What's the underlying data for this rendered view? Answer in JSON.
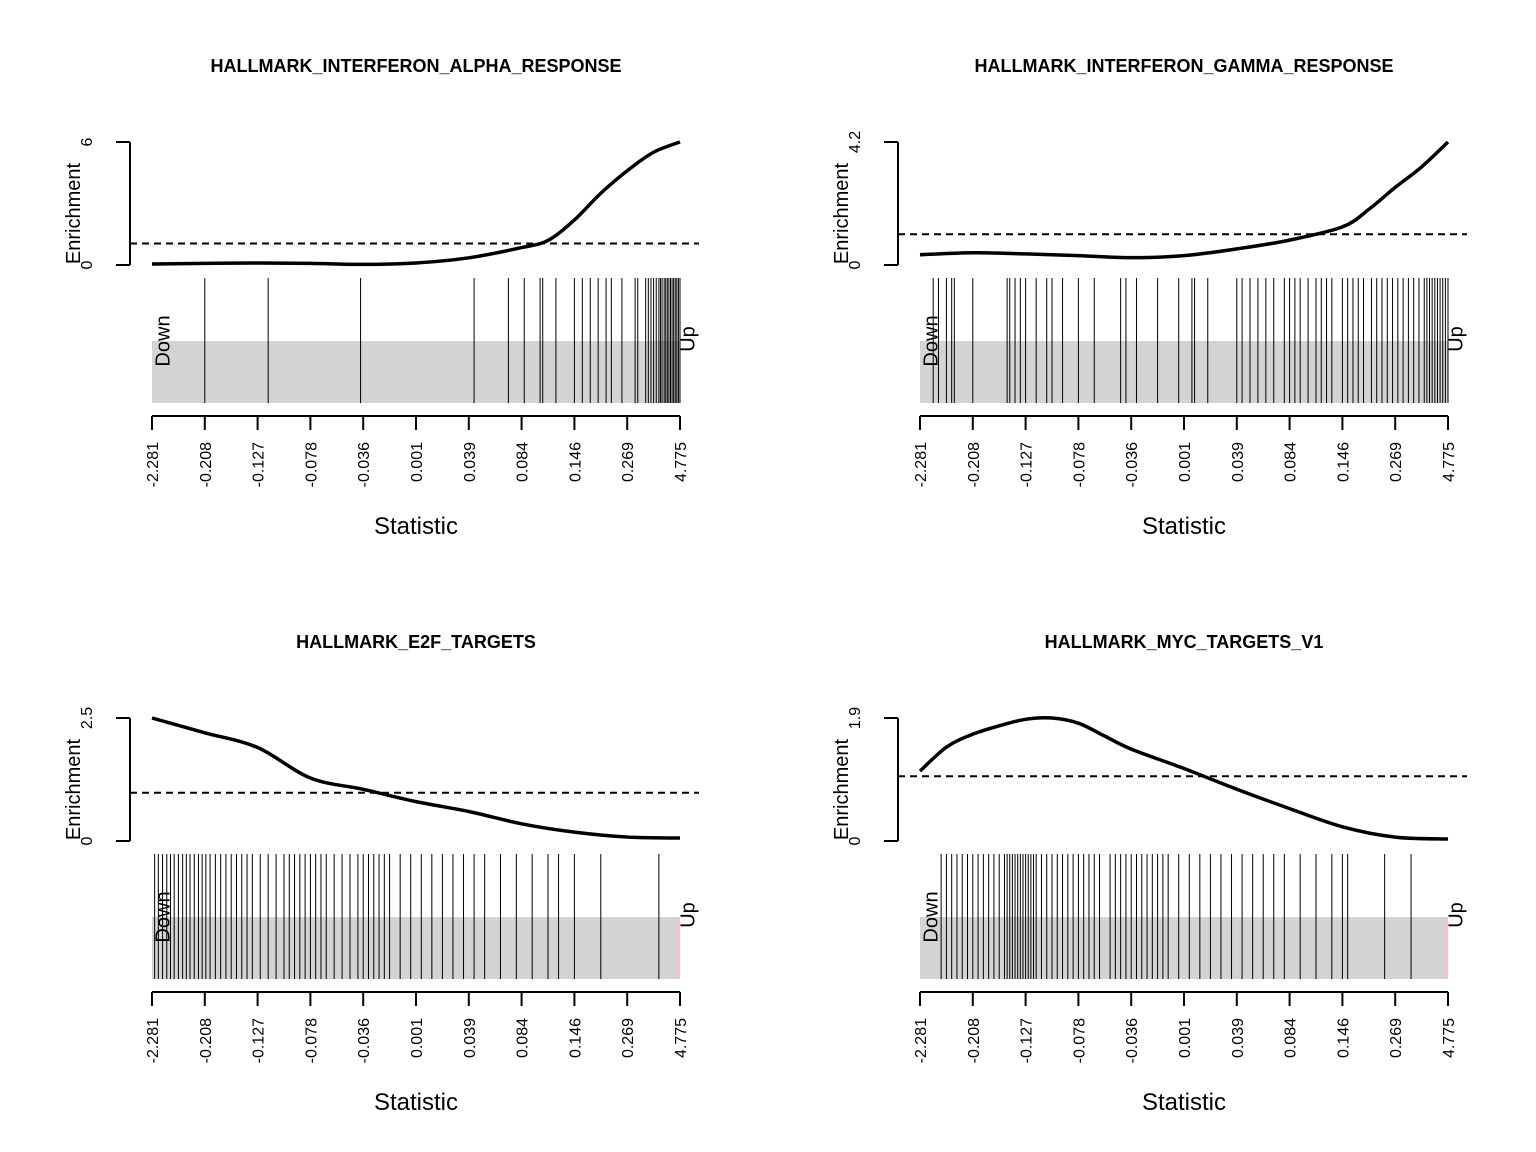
{
  "chart_data": [
    {
      "type": "barcode_enrichment",
      "title": "HALLMARK_INTERFERON_ALPHA_RESPONSE",
      "xlabel": "Statistic",
      "ylabel": "Enrichment",
      "x_ticks": [
        "-2.281",
        "-0.208",
        "-0.127",
        "-0.078",
        "-0.036",
        "0.001",
        "0.039",
        "0.084",
        "0.146",
        "0.269",
        "4.775"
      ],
      "y_ticks": [
        "0",
        "6"
      ],
      "ylim": [
        0,
        6
      ],
      "baseline": 1.05,
      "down_label": "Down",
      "up_label": "Up",
      "enrichment_curve": {
        "rank_fraction": [
          0,
          0.1,
          0.2,
          0.3,
          0.4,
          0.5,
          0.6,
          0.7,
          0.75,
          0.8,
          0.85,
          0.9,
          0.95,
          1.0
        ],
        "value": [
          0.05,
          0.08,
          0.1,
          0.08,
          0.03,
          0.1,
          0.35,
          0.85,
          1.2,
          2.2,
          3.5,
          4.6,
          5.5,
          6.0
        ]
      },
      "barcode_rank_fraction": [
        0.1,
        0.22,
        0.395,
        0.61,
        0.675,
        0.705,
        0.735,
        0.74,
        0.765,
        0.8,
        0.815,
        0.83,
        0.845,
        0.86,
        0.87,
        0.89,
        0.915,
        0.92,
        0.935,
        0.94,
        0.945,
        0.95,
        0.955,
        0.96,
        0.963,
        0.966,
        0.97,
        0.973,
        0.976,
        0.979,
        0.982,
        0.985,
        0.988,
        0.991,
        0.994,
        0.997,
        1.0
      ],
      "highlight_up_end": false
    },
    {
      "type": "barcode_enrichment",
      "title": "HALLMARK_INTERFERON_GAMMA_RESPONSE",
      "xlabel": "Statistic",
      "ylabel": "Enrichment",
      "x_ticks": [
        "-2.281",
        "-0.208",
        "-0.127",
        "-0.078",
        "-0.036",
        "0.001",
        "0.039",
        "0.084",
        "0.146",
        "0.269",
        "4.775"
      ],
      "y_ticks": [
        "0",
        "4.2"
      ],
      "ylim": [
        0,
        4.2
      ],
      "baseline": 1.05,
      "down_label": "Down",
      "up_label": "Up",
      "enrichment_curve": {
        "rank_fraction": [
          0,
          0.1,
          0.2,
          0.3,
          0.4,
          0.5,
          0.6,
          0.7,
          0.8,
          0.85,
          0.9,
          0.95,
          1.0
        ],
        "value": [
          0.35,
          0.42,
          0.38,
          0.32,
          0.25,
          0.32,
          0.55,
          0.85,
          1.3,
          1.9,
          2.65,
          3.35,
          4.2
        ]
      },
      "barcode_rank_fraction": [
        0.025,
        0.035,
        0.05,
        0.06,
        0.065,
        0.1,
        0.165,
        0.17,
        0.18,
        0.19,
        0.2,
        0.22,
        0.24,
        0.25,
        0.27,
        0.3,
        0.33,
        0.38,
        0.39,
        0.41,
        0.45,
        0.49,
        0.515,
        0.52,
        0.545,
        0.6,
        0.61,
        0.625,
        0.64,
        0.655,
        0.67,
        0.69,
        0.7,
        0.71,
        0.72,
        0.735,
        0.75,
        0.76,
        0.77,
        0.78,
        0.8,
        0.81,
        0.82,
        0.83,
        0.84,
        0.855,
        0.865,
        0.875,
        0.885,
        0.895,
        0.905,
        0.915,
        0.925,
        0.935,
        0.945,
        0.955,
        0.96,
        0.965,
        0.97,
        0.975,
        0.98,
        0.985,
        0.99,
        0.995,
        1.0
      ],
      "highlight_up_end": false
    },
    {
      "type": "barcode_enrichment",
      "title": "HALLMARK_E2F_TARGETS",
      "xlabel": "Statistic",
      "ylabel": "Enrichment",
      "x_ticks": [
        "-2.281",
        "-0.208",
        "-0.127",
        "-0.078",
        "-0.036",
        "0.001",
        "0.039",
        "0.084",
        "0.146",
        "0.269",
        "4.775"
      ],
      "y_ticks": [
        "0",
        "2.5"
      ],
      "ylim": [
        0,
        2.5
      ],
      "baseline": 0.98,
      "down_label": "Down",
      "up_label": "Up",
      "enrichment_curve": {
        "rank_fraction": [
          0,
          0.1,
          0.2,
          0.3,
          0.4,
          0.5,
          0.6,
          0.7,
          0.8,
          0.9,
          1.0
        ],
        "value": [
          2.5,
          2.2,
          1.9,
          1.28,
          1.05,
          0.8,
          0.6,
          0.35,
          0.18,
          0.08,
          0.06
        ]
      },
      "barcode_rank_fraction": [
        0.005,
        0.012,
        0.02,
        0.028,
        0.035,
        0.042,
        0.05,
        0.058,
        0.065,
        0.072,
        0.08,
        0.088,
        0.095,
        0.102,
        0.11,
        0.12,
        0.13,
        0.14,
        0.15,
        0.16,
        0.17,
        0.18,
        0.19,
        0.205,
        0.22,
        0.235,
        0.25,
        0.26,
        0.27,
        0.28,
        0.29,
        0.3,
        0.31,
        0.32,
        0.33,
        0.345,
        0.36,
        0.375,
        0.39,
        0.4,
        0.41,
        0.42,
        0.43,
        0.44,
        0.45,
        0.47,
        0.49,
        0.51,
        0.53,
        0.55,
        0.57,
        0.59,
        0.61,
        0.63,
        0.66,
        0.69,
        0.72,
        0.75,
        0.77,
        0.8,
        0.85,
        0.96
      ],
      "highlight_up_end": true,
      "highlight_color": "#ffc0cb"
    },
    {
      "type": "barcode_enrichment",
      "title": "HALLMARK_MYC_TARGETS_V1",
      "xlabel": "Statistic",
      "ylabel": "Enrichment",
      "x_ticks": [
        "-2.281",
        "-0.208",
        "-0.127",
        "-0.078",
        "-0.036",
        "0.001",
        "0.039",
        "0.084",
        "0.146",
        "0.269",
        "4.775"
      ],
      "y_ticks": [
        "0",
        "1.9"
      ],
      "ylim": [
        0,
        1.9
      ],
      "baseline": 1.0,
      "down_label": "Down",
      "up_label": "Up",
      "enrichment_curve": {
        "rank_fraction": [
          0,
          0.05,
          0.1,
          0.15,
          0.2,
          0.25,
          0.3,
          0.35,
          0.4,
          0.5,
          0.6,
          0.7,
          0.8,
          0.9,
          1.0
        ],
        "value": [
          1.08,
          1.45,
          1.65,
          1.78,
          1.88,
          1.9,
          1.82,
          1.62,
          1.42,
          1.12,
          0.8,
          0.5,
          0.22,
          0.06,
          0.03
        ]
      },
      "barcode_rank_fraction": [
        0.04,
        0.05,
        0.06,
        0.07,
        0.08,
        0.09,
        0.1,
        0.11,
        0.12,
        0.13,
        0.14,
        0.15,
        0.16,
        0.165,
        0.17,
        0.175,
        0.18,
        0.185,
        0.19,
        0.195,
        0.2,
        0.205,
        0.21,
        0.215,
        0.22,
        0.23,
        0.24,
        0.25,
        0.26,
        0.27,
        0.28,
        0.29,
        0.3,
        0.31,
        0.32,
        0.33,
        0.34,
        0.36,
        0.37,
        0.38,
        0.39,
        0.4,
        0.41,
        0.42,
        0.43,
        0.44,
        0.45,
        0.46,
        0.47,
        0.49,
        0.51,
        0.53,
        0.55,
        0.57,
        0.59,
        0.61,
        0.63,
        0.65,
        0.67,
        0.69,
        0.72,
        0.75,
        0.78,
        0.8,
        0.81,
        0.88,
        0.93
      ],
      "highlight_up_end": true,
      "highlight_color": "#ffc0cb"
    }
  ]
}
